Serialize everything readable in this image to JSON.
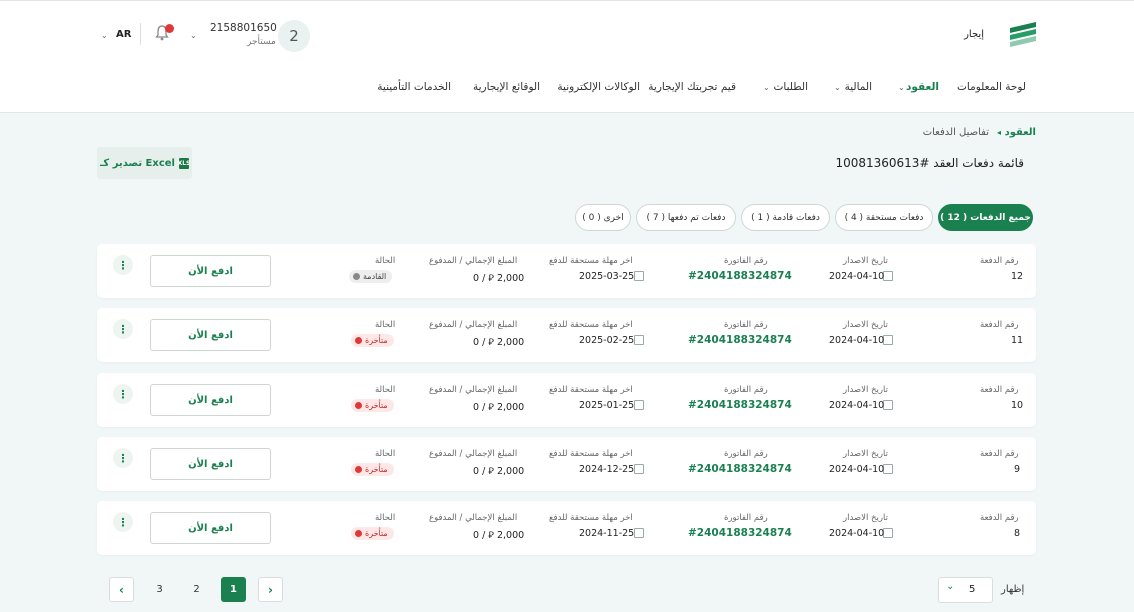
{
  "header": {
    "brand": "إيجار",
    "user_id": "2158801650",
    "user_role": "مستأجر",
    "avatar": "2",
    "lang": "AR",
    "icons": {
      "logo": "ejar-logo",
      "bell": "bell-icon",
      "chevron": "chevron-down-icon"
    },
    "notification_color": "#e0383a"
  },
  "nav": [
    {
      "label": "لوحة المعلومات",
      "active": false,
      "dropdown": false
    },
    {
      "label": "العقود",
      "active": true,
      "dropdown": true
    },
    {
      "label": "المالية",
      "active": false,
      "dropdown": true
    },
    {
      "label": "الطلبات",
      "active": false,
      "dropdown": true
    },
    {
      "label": "قيم تجربتك الإيجارية",
      "active": false,
      "dropdown": false
    },
    {
      "label": "الوكالات الإلكترونية",
      "active": false,
      "dropdown": false
    },
    {
      "label": "الوقائع الإيجارية",
      "active": false,
      "dropdown": false
    },
    {
      "label": "الخدمات التأمينية",
      "active": false,
      "dropdown": false
    }
  ],
  "breadcrumb": {
    "parent": "العقود",
    "current": "تفاصيل الدفعات",
    "separator": "◂"
  },
  "page": {
    "title": "قائمة دفعات العقد #10081360613",
    "export_label": "تصدير كـ Excel",
    "xls_icon": "XLS"
  },
  "filters": [
    {
      "label": "جميع الدفعات ( 12 )",
      "active": true
    },
    {
      "label": "دفعات مستحقة ( 4 )",
      "active": false
    },
    {
      "label": "دفعات قادمة ( 1 )",
      "active": false
    },
    {
      "label": "دفعات تم دفعها ( 7 )",
      "active": false
    },
    {
      "label": "اخرى ( 0 )",
      "active": false
    }
  ],
  "columns": {
    "payment_no": "رقم الدفعة",
    "issue_date": "تاريخ الاصدار",
    "invoice_no": "رقم الفاتورة",
    "due_date": "اخر مهلة مستحقة للدفع",
    "amount": "المبلغ الإجمالي / المدفوع",
    "status": "الحالة"
  },
  "payments": [
    {
      "no": "12",
      "issue": "2024-04-10",
      "invoice": "#2404188324874",
      "due": "2025-03-25",
      "amount": "2,000",
      "paid": "0",
      "status": "القادمة",
      "status_type": "upcoming",
      "pay_label": "ادفع الأن",
      "menu": "⋮"
    },
    {
      "no": "11",
      "issue": "2024-04-10",
      "invoice": "#2404188324874",
      "due": "2025-02-25",
      "amount": "2,000",
      "paid": "0",
      "status": "متأخرة",
      "status_type": "late",
      "pay_label": "ادفع الأن",
      "menu": "⋮"
    },
    {
      "no": "10",
      "issue": "2024-04-10",
      "invoice": "#2404188324874",
      "due": "2025-01-25",
      "amount": "2,000",
      "paid": "0",
      "status": "متأخرة",
      "status_type": "late",
      "pay_label": "ادفع الأن",
      "menu": "⋮"
    },
    {
      "no": "9",
      "issue": "2024-04-10",
      "invoice": "#2404188324874",
      "due": "2024-12-25",
      "amount": "2,000",
      "paid": "0",
      "status": "متأخرة",
      "status_type": "late",
      "pay_label": "ادفع الأن",
      "menu": "⋮"
    },
    {
      "no": "8",
      "issue": "2024-04-10",
      "invoice": "#2404188324874",
      "due": "2024-11-25",
      "amount": "2,000",
      "paid": "0",
      "status": "متأخرة",
      "status_type": "late",
      "pay_label": "ادفع الأن",
      "menu": "⋮"
    }
  ],
  "currency_symbol": "⃁",
  "pagination": {
    "pages": [
      "3",
      "2",
      "1"
    ],
    "active": "1",
    "prev": "‹",
    "next": "›",
    "per_page": "5",
    "show_label": "إظهار"
  },
  "colors": {
    "accent": "#1b8050",
    "late": "#e0383a"
  }
}
